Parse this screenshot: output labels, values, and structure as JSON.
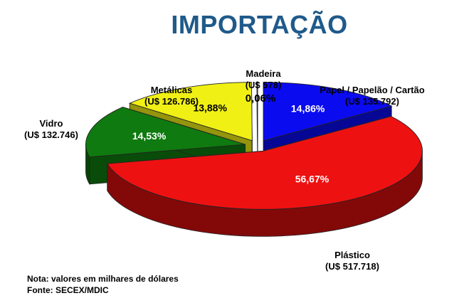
{
  "chart_data": {
    "type": "pie",
    "style": "3d-exploded",
    "title": "IMPORTAÇÃO",
    "unit_note": "Nota: valores em milhares de dólares",
    "source": "Fonte: SECEX/MDIC",
    "slices": [
      {
        "name": "Papel / Papelão / Cartão",
        "value_label": "(U$ 135.792)",
        "value": 135792,
        "percent": 14.86,
        "percent_label": "14,86%",
        "color": "#0b0bf0"
      },
      {
        "name": "Plástico",
        "value_label": "(U$ 517.718)",
        "value": 517718,
        "percent": 56.67,
        "percent_label": "56,67%",
        "color": "#ee1111"
      },
      {
        "name": "Vidro",
        "value_label": "(U$ 132.746)",
        "value": 132746,
        "percent": 14.53,
        "percent_label": "14,53%",
        "color": "#0f7a0f"
      },
      {
        "name": "Metálicas",
        "value_label": "(U$ 126.786)",
        "value": 126786,
        "percent": 13.88,
        "percent_label": "13,88%",
        "color": "#f0f015"
      },
      {
        "name": "Madeira",
        "value_label": "(U$ 578)",
        "value": 578,
        "percent": 0.06,
        "percent_label": "0,06%",
        "color": "#f4f4f4"
      }
    ]
  }
}
